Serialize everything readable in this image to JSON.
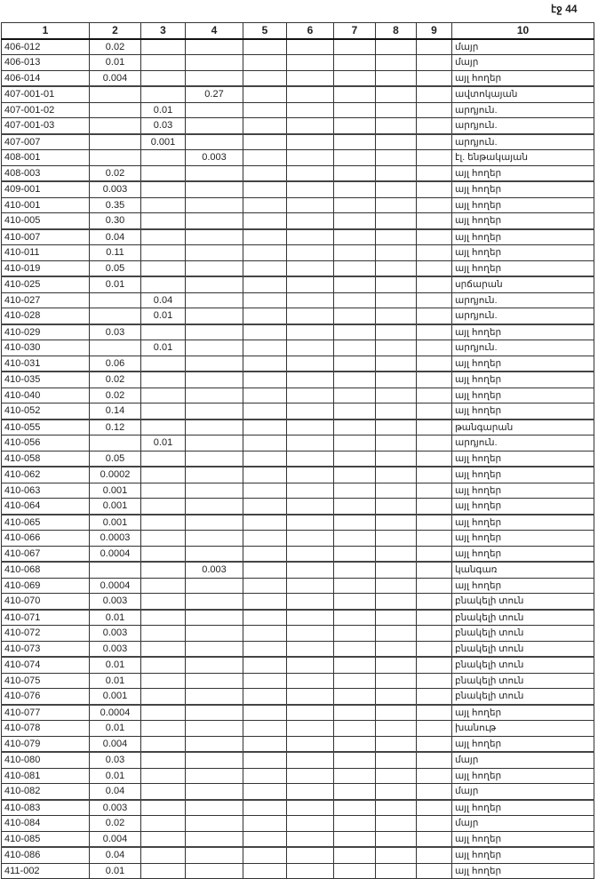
{
  "page_label": "էջ 44",
  "columns": [
    "1",
    "2",
    "3",
    "4",
    "5",
    "6",
    "7",
    "8",
    "9",
    "10"
  ],
  "rows": [
    [
      "406-012",
      "0.02",
      "",
      "",
      "մայր"
    ],
    [
      "406-013",
      "0.01",
      "",
      "",
      "մայր"
    ],
    [
      "406-014",
      "0.004",
      "",
      "",
      "այլ հողեր"
    ],
    [
      "407-001-01",
      "",
      "",
      "0.27",
      "ավտոկայան"
    ],
    [
      "407-001-02",
      "",
      "0.01",
      "",
      "արդյուն."
    ],
    [
      "407-001-03",
      "",
      "0.03",
      "",
      "արդյուն."
    ],
    [
      "407-007",
      "",
      "0.001",
      "",
      "արդյուն."
    ],
    [
      "408-001",
      "",
      "",
      "0.003",
      "էլ. ենթակայան"
    ],
    [
      "408-003",
      "0.02",
      "",
      "",
      "այլ հողեր"
    ],
    [
      "409-001",
      "0.003",
      "",
      "",
      "այլ հողեր"
    ],
    [
      "410-001",
      "0.35",
      "",
      "",
      "այլ հողեր"
    ],
    [
      "410-005",
      "0.30",
      "",
      "",
      "այլ հողեր"
    ],
    [
      "410-007",
      "0.04",
      "",
      "",
      "այլ հողեր"
    ],
    [
      "410-011",
      "0.11",
      "",
      "",
      "այլ հողեր"
    ],
    [
      "410-019",
      "0.05",
      "",
      "",
      "այլ հողեր"
    ],
    [
      "410-025",
      "0.01",
      "",
      "",
      "սրճարան"
    ],
    [
      "410-027",
      "",
      "0.04",
      "",
      "արդյուն."
    ],
    [
      "410-028",
      "",
      "0.01",
      "",
      "արդյուն."
    ],
    [
      "410-029",
      "0.03",
      "",
      "",
      "այլ հողեր"
    ],
    [
      "410-030",
      "",
      "0.01",
      "",
      "արդյուն."
    ],
    [
      "410-031",
      "0.06",
      "",
      "",
      "այլ հողեր"
    ],
    [
      "410-035",
      "0.02",
      "",
      "",
      "այլ հողեր"
    ],
    [
      "410-040",
      "0.02",
      "",
      "",
      "այլ հողեր"
    ],
    [
      "410-052",
      "0.14",
      "",
      "",
      "այլ հողեր"
    ],
    [
      "410-055",
      "0.12",
      "",
      "",
      "թանգարան"
    ],
    [
      "410-056",
      "",
      "0.01",
      "",
      "արդյուն."
    ],
    [
      "410-058",
      "0.05",
      "",
      "",
      "այլ հողեր"
    ],
    [
      "410-062",
      "0.0002",
      "",
      "",
      "այլ հողեր"
    ],
    [
      "410-063",
      "0.001",
      "",
      "",
      "այլ հողեր"
    ],
    [
      "410-064",
      "0.001",
      "",
      "",
      "այլ հողեր"
    ],
    [
      "410-065",
      "0.001",
      "",
      "",
      "այլ հողեր"
    ],
    [
      "410-066",
      "0.0003",
      "",
      "",
      "այլ հողեր"
    ],
    [
      "410-067",
      "0.0004",
      "",
      "",
      "այլ հողեր"
    ],
    [
      "410-068",
      "",
      "",
      "0.003",
      "կանգառ"
    ],
    [
      "410-069",
      "0.0004",
      "",
      "",
      "այլ հողեր"
    ],
    [
      "410-070",
      "0.003",
      "",
      "",
      "բնակելի տուն"
    ],
    [
      "410-071",
      "0.01",
      "",
      "",
      "բնակելի տուն"
    ],
    [
      "410-072",
      "0.003",
      "",
      "",
      "բնակելի տուն"
    ],
    [
      "410-073",
      "0.003",
      "",
      "",
      "բնակելի տուն"
    ],
    [
      "410-074",
      "0.01",
      "",
      "",
      "բնակելի տուն"
    ],
    [
      "410-075",
      "0.01",
      "",
      "",
      "բնակելի տուն"
    ],
    [
      "410-076",
      "0.001",
      "",
      "",
      "բնակելի տուն"
    ],
    [
      "410-077",
      "0.0004",
      "",
      "",
      "այլ հողեր"
    ],
    [
      "410-078",
      "0.01",
      "",
      "",
      "խանութ"
    ],
    [
      "410-079",
      "0.004",
      "",
      "",
      "այլ հողեր"
    ],
    [
      "410-080",
      "0.03",
      "",
      "",
      "մայր"
    ],
    [
      "410-081",
      "0.01",
      "",
      "",
      "այլ հողեր"
    ],
    [
      "410-082",
      "0.04",
      "",
      "",
      "մայր"
    ],
    [
      "410-083",
      "0.003",
      "",
      "",
      "այլ հողեր"
    ],
    [
      "410-084",
      "0.02",
      "",
      "",
      "մայր"
    ],
    [
      "410-085",
      "0.004",
      "",
      "",
      "այլ հողեր"
    ],
    [
      "410-086",
      "0.04",
      "",
      "",
      "այլ հողեր"
    ],
    [
      "411-002",
      "0.01",
      "",
      "",
      "այլ հողեր"
    ]
  ]
}
